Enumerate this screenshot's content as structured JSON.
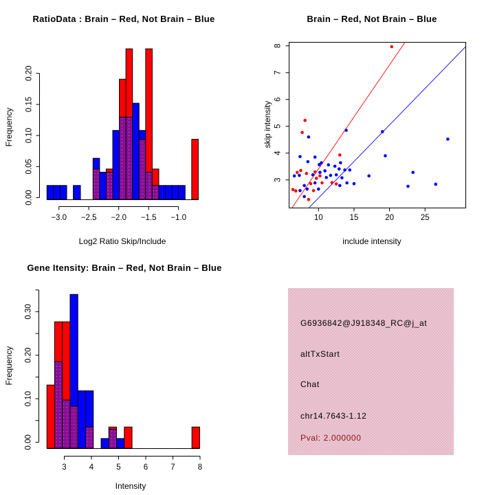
{
  "colors": {
    "red": "#ff0000",
    "blue": "#0000ff",
    "overlap_purple": "#890d96",
    "overlap_dot": "#b24fc0",
    "axis_black": "#000000",
    "panel_pink": "#f5aec6",
    "panel_pink_alt": "#dad2d3",
    "pval_red": "#8b1414"
  },
  "chart_data": [
    {
      "id": "ratio-histogram",
      "type": "bar",
      "subtype": "overlaid-frequency-histogram",
      "title": "RatioData : Brain – Red, Not Brain – Blue",
      "xlabel": "Log2 Ratio Skip/Include",
      "ylabel": "Frequency",
      "legend": {
        "red": "Brain",
        "blue": "Not Brain"
      },
      "xlim": [
        -3.3,
        -0.6
      ],
      "ylim": [
        0,
        0.245
      ],
      "grid": false,
      "x_ticks": [
        {
          "v": -3.0,
          "label": "−3.0"
        },
        {
          "v": -2.5,
          "label": "−2.5"
        },
        {
          "v": -2.0,
          "label": "−2.0"
        },
        {
          "v": -1.5,
          "label": "−1.5"
        },
        {
          "v": -1.0,
          "label": "−1.0"
        }
      ],
      "y_ticks": [
        {
          "v": 0.0,
          "label": "0.00"
        },
        {
          "v": 0.05,
          "label": "0.05"
        },
        {
          "v": 0.1,
          "label": "0.10"
        },
        {
          "v": 0.15,
          "label": "0.15"
        },
        {
          "v": 0.2,
          "label": "0.20"
        }
      ],
      "bars": [
        {
          "x0": -3.2,
          "x1": -3.09,
          "red": 0,
          "blue": 0.022
        },
        {
          "x0": -3.09,
          "x1": -2.98,
          "red": 0,
          "blue": 0.022
        },
        {
          "x0": -2.98,
          "x1": -2.87,
          "red": 0,
          "blue": 0.022
        },
        {
          "x0": -2.76,
          "x1": -2.64,
          "red": 0,
          "blue": 0.022
        },
        {
          "x0": -2.43,
          "x1": -2.32,
          "red": 0.048,
          "blue": 0.065
        },
        {
          "x0": -2.32,
          "x1": -2.21,
          "red": 0,
          "blue": 0.043
        },
        {
          "x0": -2.21,
          "x1": -2.1,
          "red": 0.048,
          "blue": 0.043
        },
        {
          "x0": -2.1,
          "x1": -1.99,
          "red": 0,
          "blue": 0.109
        },
        {
          "x0": -1.99,
          "x1": -1.88,
          "red": 0.19,
          "blue": 0.13
        },
        {
          "x0": -1.88,
          "x1": -1.77,
          "red": 0.238,
          "blue": 0.13
        },
        {
          "x0": -1.77,
          "x1": -1.66,
          "red": 0,
          "blue": 0.152
        },
        {
          "x0": -1.66,
          "x1": -1.55,
          "red": 0.095,
          "blue": 0.109
        },
        {
          "x0": -1.55,
          "x1": -1.44,
          "red": 0.238,
          "blue": 0.043
        },
        {
          "x0": -1.44,
          "x1": -1.33,
          "red": 0.048,
          "blue": 0.022
        },
        {
          "x0": -1.33,
          "x1": -1.22,
          "red": 0,
          "blue": 0.022
        },
        {
          "x0": -1.22,
          "x1": -1.11,
          "red": 0,
          "blue": 0.022
        },
        {
          "x0": -1.11,
          "x1": -1.0,
          "red": 0,
          "blue": 0.022
        },
        {
          "x0": -1.0,
          "x1": -0.89,
          "red": 0,
          "blue": 0.022
        },
        {
          "x0": -0.78,
          "x1": -0.67,
          "red": 0.095,
          "blue": 0
        }
      ]
    },
    {
      "id": "intensity-scatter",
      "type": "scatter",
      "title": "Brain – Red, Not Brain – Blue",
      "xlabel": "include intensity",
      "ylabel": "skip intensity",
      "xlim": [
        5.8,
        30.7
      ],
      "ylim": [
        1.97,
        8.15
      ],
      "grid": false,
      "x_ticks": [
        {
          "v": 10,
          "label": "10"
        },
        {
          "v": 15,
          "label": "15"
        },
        {
          "v": 20,
          "label": "20"
        },
        {
          "v": 25,
          "label": "25"
        }
      ],
      "y_ticks": [
        {
          "v": 3,
          "label": "3"
        },
        {
          "v": 4,
          "label": "4"
        },
        {
          "v": 5,
          "label": "5"
        },
        {
          "v": 6,
          "label": "6"
        },
        {
          "v": 7,
          "label": "7"
        },
        {
          "v": 8,
          "label": "8"
        }
      ],
      "series": [
        {
          "name": "Brain",
          "color": "red",
          "points": [
            [
              20.3,
              7.97
            ],
            [
              8.1,
              5.22
            ],
            [
              7.7,
              4.77
            ],
            [
              13.0,
              3.93
            ],
            [
              7.0,
              3.28
            ],
            [
              7.5,
              3.35
            ],
            [
              8.3,
              3.24
            ],
            [
              9.5,
              3.3
            ],
            [
              9.7,
              3.06
            ],
            [
              10.2,
              3.15
            ],
            [
              8.9,
              2.86
            ],
            [
              10.5,
              2.89
            ],
            [
              11.9,
              2.9
            ],
            [
              12.5,
              2.85
            ],
            [
              6.4,
              2.64
            ],
            [
              6.8,
              2.59
            ],
            [
              9.3,
              2.6
            ],
            [
              8.6,
              2.27
            ]
          ]
        },
        {
          "name": "Not Brain",
          "color": "blue",
          "points": [
            [
              8.6,
              4.6
            ],
            [
              13.9,
              4.85
            ],
            [
              19.0,
              4.8
            ],
            [
              28.2,
              4.52
            ],
            [
              7.4,
              3.87
            ],
            [
              9.5,
              3.85
            ],
            [
              8.5,
              3.68
            ],
            [
              19.4,
              3.9
            ],
            [
              10.4,
              3.64
            ],
            [
              10.1,
              3.57
            ],
            [
              11.4,
              3.56
            ],
            [
              13.1,
              3.64
            ],
            [
              12.3,
              3.51
            ],
            [
              12.9,
              3.41
            ],
            [
              13.7,
              3.37
            ],
            [
              14.4,
              3.37
            ],
            [
              10.9,
              3.34
            ],
            [
              10.2,
              3.28
            ],
            [
              9.2,
              3.19
            ],
            [
              7.3,
              3.17
            ],
            [
              6.6,
              3.15
            ],
            [
              11.7,
              3.17
            ],
            [
              12.5,
              3.19
            ],
            [
              11.1,
              3.09
            ],
            [
              13.3,
              3.08
            ],
            [
              17.1,
              3.15
            ],
            [
              23.3,
              3.28
            ],
            [
              15.0,
              2.86
            ],
            [
              14.0,
              2.89
            ],
            [
              9.5,
              2.89
            ],
            [
              13.0,
              2.79
            ],
            [
              8.0,
              2.79
            ],
            [
              8.4,
              2.66
            ],
            [
              7.4,
              2.6
            ],
            [
              10.0,
              2.66
            ],
            [
              22.6,
              2.76
            ],
            [
              26.5,
              2.84
            ],
            [
              8.0,
              2.38
            ]
          ]
        }
      ],
      "lines": [
        {
          "name": "brain-diagonal",
          "color": "red",
          "slope": 0.388,
          "intercept": -0.47
        },
        {
          "name": "notbrain-diagonal",
          "color": "blue",
          "slope": 0.2725,
          "intercept": -0.4
        }
      ]
    },
    {
      "id": "gene-histogram",
      "type": "bar",
      "subtype": "overlaid-frequency-histogram",
      "title": "Gene Itensity: Brain – Red, Not Brain – Blue",
      "xlabel": "Intensity",
      "ylabel": "Frequency",
      "legend": {
        "red": "Brain",
        "blue": "Not Brain"
      },
      "xlim": [
        2.3,
        8.1
      ],
      "ylim": [
        0,
        0.355
      ],
      "grid": false,
      "x_ticks": [
        {
          "v": 3,
          "label": "3"
        },
        {
          "v": 4,
          "label": "4"
        },
        {
          "v": 5,
          "label": "5"
        },
        {
          "v": 6,
          "label": "6"
        },
        {
          "v": 7,
          "label": "7"
        },
        {
          "v": 8,
          "label": "8"
        }
      ],
      "y_ticks": [
        {
          "v": 0.0,
          "label": "0.00"
        },
        {
          "v": 0.05,
          "label": ""
        },
        {
          "v": 0.1,
          "label": "0.10"
        },
        {
          "v": 0.15,
          "label": ""
        },
        {
          "v": 0.2,
          "label": "0.20"
        },
        {
          "v": 0.25,
          "label": ""
        },
        {
          "v": 0.3,
          "label": "0.30"
        },
        {
          "v": 0.35,
          "label": ""
        }
      ],
      "bars": [
        {
          "x0": 2.36,
          "x1": 2.645,
          "red": 0.143,
          "blue": 0
        },
        {
          "x0": 2.645,
          "x1": 2.93,
          "red": 0.286,
          "blue": 0.196
        },
        {
          "x0": 2.93,
          "x1": 3.215,
          "red": 0.286,
          "blue": 0.109
        },
        {
          "x0": 3.215,
          "x1": 3.5,
          "red": 0.095,
          "blue": 0.348
        },
        {
          "x0": 3.5,
          "x1": 3.785,
          "red": 0,
          "blue": 0.13
        },
        {
          "x0": 3.785,
          "x1": 4.07,
          "red": 0.048,
          "blue": 0.13
        },
        {
          "x0": 4.355,
          "x1": 4.64,
          "red": 0,
          "blue": 0.022
        },
        {
          "x0": 4.64,
          "x1": 4.925,
          "red": 0.048,
          "blue": 0.043
        },
        {
          "x0": 4.925,
          "x1": 5.21,
          "red": 0,
          "blue": 0.022
        },
        {
          "x0": 5.21,
          "x1": 5.495,
          "red": 0.048,
          "blue": 0
        },
        {
          "x0": 7.7,
          "x1": 7.985,
          "red": 0.048,
          "blue": 0
        }
      ]
    }
  ],
  "info_panel": {
    "lines": [
      {
        "text": "G6936842@J918348_RC@j_at",
        "color": "#000000"
      },
      {
        "text": "altTxStart",
        "color": "#000000"
      },
      {
        "text": "Chat",
        "color": "#000000"
      },
      {
        "text": "chr14.7643-1.12",
        "color": "#000000"
      },
      {
        "text": "Pval: 2.000000",
        "color": "#8b1414"
      }
    ]
  }
}
